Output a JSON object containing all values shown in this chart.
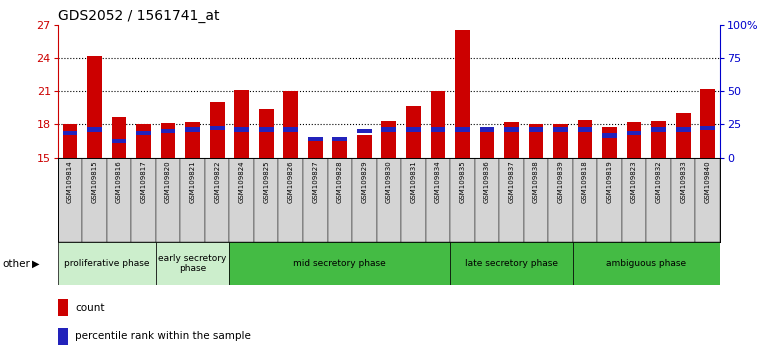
{
  "title": "GDS2052 / 1561741_at",
  "samples": [
    "GSM109814",
    "GSM109815",
    "GSM109816",
    "GSM109817",
    "GSM109820",
    "GSM109821",
    "GSM109822",
    "GSM109824",
    "GSM109825",
    "GSM109826",
    "GSM109827",
    "GSM109828",
    "GSM109829",
    "GSM109830",
    "GSM109831",
    "GSM109834",
    "GSM109835",
    "GSM109836",
    "GSM109837",
    "GSM109838",
    "GSM109839",
    "GSM109818",
    "GSM109819",
    "GSM109823",
    "GSM109832",
    "GSM109833",
    "GSM109840"
  ],
  "count_values": [
    18.05,
    24.2,
    18.7,
    18.05,
    18.1,
    18.2,
    20.0,
    21.1,
    19.4,
    21.0,
    16.7,
    16.5,
    17.0,
    18.3,
    19.7,
    21.0,
    26.5,
    17.5,
    18.2,
    18.0,
    18.0,
    18.4,
    17.8,
    18.2,
    18.3,
    19.0,
    21.2
  ],
  "percentile_values": [
    17.0,
    17.35,
    16.3,
    17.0,
    17.2,
    17.35,
    17.45,
    17.35,
    17.35,
    17.35,
    16.5,
    16.5,
    17.2,
    17.35,
    17.35,
    17.35,
    17.35,
    17.35,
    17.35,
    17.35,
    17.35,
    17.35,
    16.8,
    17.0,
    17.35,
    17.35,
    17.45
  ],
  "phases": [
    {
      "label": "proliferative phase",
      "start": 0,
      "end": 4,
      "color": "#cceecc"
    },
    {
      "label": "early secretory\nphase",
      "start": 4,
      "end": 7,
      "color": "#cceecc"
    },
    {
      "label": "mid secretory phase",
      "start": 7,
      "end": 16,
      "color": "#44bb44"
    },
    {
      "label": "late secretory phase",
      "start": 16,
      "end": 21,
      "color": "#44bb44"
    },
    {
      "label": "ambiguous phase",
      "start": 21,
      "end": 27,
      "color": "#44bb44"
    }
  ],
  "ymin": 15,
  "ymax": 27,
  "yticks_left": [
    15,
    18,
    21,
    24,
    27
  ],
  "yticks_right": [
    0,
    25,
    50,
    75,
    100
  ],
  "bar_color": "#cc0000",
  "percentile_color": "#2222bb",
  "tick_color_left": "#cc0000",
  "tick_color_right": "#0000cc",
  "other_label": "other"
}
